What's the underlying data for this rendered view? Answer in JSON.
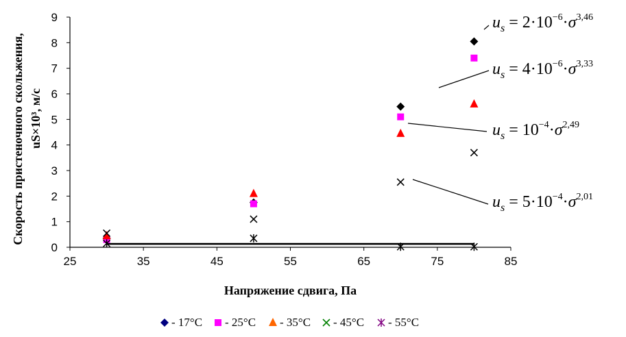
{
  "chart_data": {
    "type": "scatter",
    "xlabel": "Напряжение сдвига, Па",
    "ylabel_line1": "Скорость пристеночного скольжения,",
    "ylabel_line2": "uS×10³, м/с",
    "xlim": [
      25,
      85
    ],
    "ylim": [
      0,
      9
    ],
    "xticks": [
      25,
      35,
      45,
      55,
      65,
      75,
      85
    ],
    "yticks": [
      0,
      1,
      2,
      3,
      4,
      5,
      6,
      7,
      8,
      9
    ],
    "grid": false,
    "legend_position": "bottom",
    "series": [
      {
        "name": "- 17°С",
        "marker": "diamond",
        "color": "#000080",
        "x": [
          30,
          50,
          70,
          80
        ],
        "y": [
          0.35,
          1.75,
          5.5,
          8.05
        ]
      },
      {
        "name": "- 25°С",
        "marker": "square",
        "color": "#ff00ff",
        "x": [
          30,
          50,
          70,
          80
        ],
        "y": [
          0.3,
          1.7,
          5.1,
          7.4
        ]
      },
      {
        "name": "- 35°С",
        "marker": "triangle",
        "color": "#ff6600",
        "x": [
          30,
          50,
          70,
          80
        ],
        "y": [
          0.45,
          2.1,
          4.45,
          5.6
        ]
      },
      {
        "name": "- 45°С",
        "marker": "x",
        "color": "#008000",
        "x": [
          30,
          50,
          70,
          80
        ],
        "y": [
          0.55,
          1.1,
          2.55,
          3.7
        ]
      },
      {
        "name": "- 55°С",
        "marker": "asterisk",
        "color": "#800080",
        "x": [
          30,
          50,
          70,
          80
        ],
        "y": [
          0.15,
          0.35,
          0.02,
          0.02
        ]
      }
    ],
    "point_colors": [
      "#000000",
      "#ff00ff",
      "#ff0000",
      "#000000",
      "#000000"
    ],
    "trendlines": [
      {
        "color": "#0000ff",
        "coef": 2e-06,
        "power": 3.46,
        "x_range": [
          30,
          80
        ],
        "eq_prefix": "2·10",
        "eq_exp": "−6",
        "eq_power": "3,46"
      },
      {
        "color": "#ff00ff",
        "coef": 4e-06,
        "power": 3.33,
        "x_range": [
          30,
          80
        ],
        "eq_prefix": "4·10",
        "eq_exp": "−6",
        "eq_power": "3,33"
      },
      {
        "color": "#ff0000",
        "coef": 0.0001,
        "power": 2.49,
        "x_range": [
          30,
          80
        ],
        "eq_prefix": "10",
        "eq_exp": "−4",
        "eq_power": "2,49"
      },
      {
        "color": "#000000",
        "coef": 0.0005,
        "power": 2.01,
        "x_range": [
          30,
          80
        ],
        "eq_prefix": "5·10",
        "eq_exp": "−4",
        "eq_power": "2,01"
      },
      {
        "color": "#000000",
        "constant": 0.13,
        "x_range": [
          30,
          80
        ]
      }
    ]
  }
}
